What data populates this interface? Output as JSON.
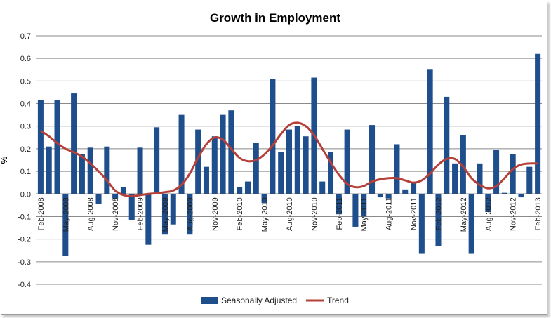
{
  "chart_data": {
    "type": "bar",
    "title": "Growth in Employment",
    "xlabel": "",
    "ylabel": "%",
    "ylim": [
      -0.4,
      0.7
    ],
    "yticks": [
      "0.7",
      "0.6",
      "0.5",
      "0.4",
      "0.3",
      "0.2",
      "0.1",
      "0.0",
      "-0.1",
      "-0.2",
      "-0.3",
      "-0.4"
    ],
    "categories": [
      "Feb-2008",
      "Mar-2008",
      "Apr-2008",
      "May-2008",
      "Jun-2008",
      "Jul-2008",
      "Aug-2008",
      "Sep-2008",
      "Oct-2008",
      "Nov-2008",
      "Dec-2008",
      "Jan-2009",
      "Feb-2009",
      "Mar-2009",
      "Apr-2009",
      "May-2009",
      "Jun-2009",
      "Jul-2009",
      "Aug-2009",
      "Sep-2009",
      "Oct-2009",
      "Nov-2009",
      "Dec-2009",
      "Jan-2010",
      "Feb-2010",
      "Mar-2010",
      "Apr-2010",
      "May-2010",
      "Jun-2010",
      "Jul-2010",
      "Aug-2010",
      "Sep-2010",
      "Oct-2010",
      "Nov-2010",
      "Dec-2010",
      "Jan-2011",
      "Feb-2011",
      "Mar-2011",
      "Apr-2011",
      "May-2011",
      "Jun-2011",
      "Jul-2011",
      "Aug-2011",
      "Sep-2011",
      "Oct-2011",
      "Nov-2011",
      "Dec-2011",
      "Jan-2012",
      "Feb-2012",
      "Mar-2012",
      "Apr-2012",
      "May-2012",
      "Jun-2012",
      "Jul-2012",
      "Aug-2012",
      "Sep-2012",
      "Oct-2012",
      "Nov-2012",
      "Dec-2012",
      "Jan-2013",
      "Feb-2013"
    ],
    "labeled_ticks": [
      "Feb-2008",
      "May-2008",
      "Aug-2008",
      "Nov-2008",
      "Feb-2009",
      "May-2009",
      "Aug-2009",
      "Nov-2009",
      "Feb-2010",
      "May-2010",
      "Aug-2010",
      "Nov-2010",
      "Feb-2011",
      "May-2011",
      "Aug-2011",
      "Nov-2011",
      "Feb-2012",
      "May-2012",
      "Aug-2012",
      "Nov-2012",
      "Feb-2013"
    ],
    "series": [
      {
        "name": "Seasonally Adjusted",
        "kind": "bar",
        "color": "#1f4e8c",
        "values": [
          0.415,
          0.21,
          0.415,
          -0.275,
          0.445,
          0.175,
          0.205,
          -0.045,
          0.21,
          -0.02,
          0.03,
          -0.115,
          0.205,
          -0.225,
          0.295,
          -0.18,
          -0.135,
          0.35,
          -0.18,
          0.285,
          0.12,
          0.255,
          0.35,
          0.37,
          0.03,
          0.055,
          0.225,
          -0.04,
          0.51,
          0.185,
          0.285,
          0.3,
          0.255,
          0.515,
          0.055,
          0.185,
          -0.09,
          0.285,
          -0.145,
          -0.1,
          0.305,
          -0.015,
          -0.02,
          0.22,
          0.02,
          0.05,
          -0.265,
          0.55,
          -0.23,
          0.43,
          0.135,
          0.26,
          -0.265,
          0.135,
          -0.08,
          0.195,
          0.005,
          0.175,
          -0.015,
          0.12,
          0.62
        ]
      },
      {
        "name": "Trend",
        "kind": "line",
        "color": "#b5403a",
        "values": [
          0.28,
          0.255,
          0.225,
          0.2,
          0.185,
          0.165,
          0.135,
          0.1,
          0.06,
          0.015,
          -0.005,
          -0.01,
          -0.005,
          0.0,
          0.003,
          0.008,
          0.015,
          0.04,
          0.09,
          0.16,
          0.22,
          0.25,
          0.24,
          0.2,
          0.16,
          0.145,
          0.15,
          0.175,
          0.215,
          0.265,
          0.305,
          0.315,
          0.3,
          0.26,
          0.2,
          0.14,
          0.085,
          0.045,
          0.03,
          0.035,
          0.055,
          0.065,
          0.07,
          0.07,
          0.06,
          0.05,
          0.06,
          0.09,
          0.13,
          0.155,
          0.155,
          0.12,
          0.07,
          0.04,
          0.025,
          0.035,
          0.07,
          0.11,
          0.13,
          0.135,
          0.135
        ]
      }
    ],
    "legend": [
      "Seasonally Adjusted",
      "Trend"
    ],
    "legend_position": "bottom",
    "grid": "horizontal"
  }
}
